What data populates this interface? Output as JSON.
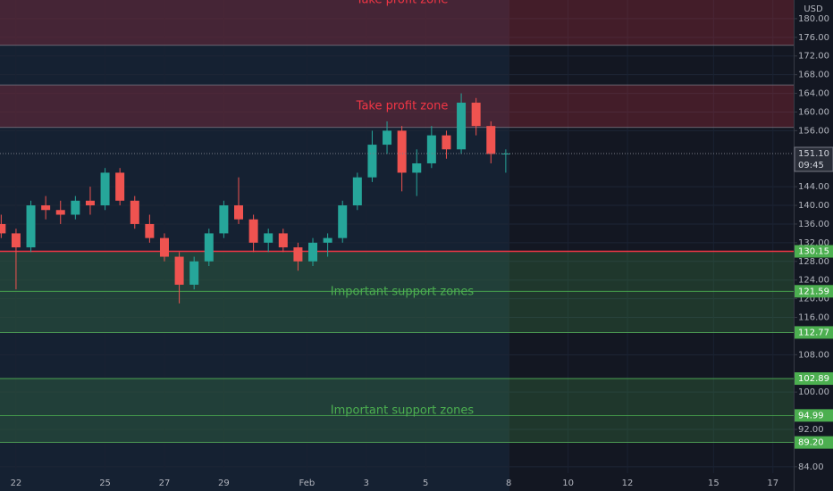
{
  "chart_data": {
    "type": "candlestick",
    "currency": "USD",
    "ylim": [
      78.8,
      184.0
    ],
    "xlim": [
      -0.54,
      26.2
    ],
    "yticks": [
      {
        "value": 180,
        "label": "180.00"
      },
      {
        "value": 176,
        "label": "176.00"
      },
      {
        "value": 172,
        "label": "172.00"
      },
      {
        "value": 168,
        "label": "168.00"
      },
      {
        "value": 164,
        "label": "164.00"
      },
      {
        "value": 160,
        "label": "160.00"
      },
      {
        "value": 156,
        "label": "156.00"
      },
      {
        "value": 144,
        "label": "144.00"
      },
      {
        "value": 140,
        "label": "140.00"
      },
      {
        "value": 136,
        "label": "136.00"
      },
      {
        "value": 132,
        "label": "132.00"
      },
      {
        "value": 128,
        "label": "128.00"
      },
      {
        "value": 124,
        "label": "124.00"
      },
      {
        "value": 120,
        "label": "120.00"
      },
      {
        "value": 116,
        "label": "116.00"
      },
      {
        "value": 108,
        "label": "108.00"
      },
      {
        "value": 100,
        "label": "100.00"
      },
      {
        "value": 92,
        "label": "92.00"
      },
      {
        "value": 84,
        "label": "84.00"
      }
    ],
    "xticks": [
      {
        "value": 0,
        "label": "22"
      },
      {
        "value": 3,
        "label": "25"
      },
      {
        "value": 5,
        "label": "27"
      },
      {
        "value": 7,
        "label": "29"
      },
      {
        "value": 9.8,
        "label": "Feb"
      },
      {
        "value": 11.8,
        "label": "3"
      },
      {
        "value": 13.8,
        "label": "5"
      },
      {
        "value": 16.6,
        "label": "8"
      },
      {
        "value": 18.6,
        "label": "10"
      },
      {
        "value": 20.6,
        "label": "12"
      },
      {
        "value": 23.5,
        "label": "15"
      },
      {
        "value": 25.5,
        "label": "17"
      }
    ],
    "up_color": "#26a69a",
    "down_color": "#ef5350",
    "candles": [
      {
        "x": -0.5,
        "open": 136,
        "high": 138,
        "low": 133,
        "close": 134
      },
      {
        "x": 0,
        "open": 134,
        "high": 135,
        "low": 122,
        "close": 131
      },
      {
        "x": 0.5,
        "open": 131,
        "high": 141,
        "low": 130,
        "close": 140
      },
      {
        "x": 1,
        "open": 140,
        "high": 142,
        "low": 137,
        "close": 139
      },
      {
        "x": 1.5,
        "open": 139,
        "high": 141,
        "low": 136,
        "close": 138
      },
      {
        "x": 2,
        "open": 138,
        "high": 142,
        "low": 137,
        "close": 141
      },
      {
        "x": 2.5,
        "open": 141,
        "high": 144,
        "low": 138,
        "close": 140
      },
      {
        "x": 3,
        "open": 140,
        "high": 148,
        "low": 139,
        "close": 147
      },
      {
        "x": 3.5,
        "open": 147,
        "high": 148,
        "low": 140,
        "close": 141
      },
      {
        "x": 4,
        "open": 141,
        "high": 142,
        "low": 135,
        "close": 136
      },
      {
        "x": 4.5,
        "open": 136,
        "high": 138,
        "low": 132,
        "close": 133
      },
      {
        "x": 5,
        "open": 133,
        "high": 134,
        "low": 128,
        "close": 129
      },
      {
        "x": 5.5,
        "open": 129,
        "high": 130,
        "low": 119,
        "close": 123
      },
      {
        "x": 6,
        "open": 123,
        "high": 129,
        "low": 122,
        "close": 128
      },
      {
        "x": 6.5,
        "open": 128,
        "high": 135,
        "low": 127,
        "close": 134
      },
      {
        "x": 7,
        "open": 134,
        "high": 141,
        "low": 133,
        "close": 140
      },
      {
        "x": 7.5,
        "open": 140,
        "high": 146,
        "low": 136,
        "close": 137
      },
      {
        "x": 8,
        "open": 137,
        "high": 138,
        "low": 130,
        "close": 132
      },
      {
        "x": 8.5,
        "open": 132,
        "high": 135,
        "low": 130,
        "close": 134
      },
      {
        "x": 9,
        "open": 134,
        "high": 135,
        "low": 130,
        "close": 131
      },
      {
        "x": 9.5,
        "open": 131,
        "high": 132,
        "low": 126,
        "close": 128
      },
      {
        "x": 10,
        "open": 128,
        "high": 133,
        "low": 127,
        "close": 132
      },
      {
        "x": 10.5,
        "open": 132,
        "high": 134,
        "low": 129,
        "close": 133
      },
      {
        "x": 11,
        "open": 133,
        "high": 141,
        "low": 132,
        "close": 140
      },
      {
        "x": 11.5,
        "open": 140,
        "high": 147,
        "low": 139,
        "close": 146
      },
      {
        "x": 12,
        "open": 146,
        "high": 156,
        "low": 145,
        "close": 153
      },
      {
        "x": 12.5,
        "open": 153,
        "high": 158,
        "low": 151,
        "close": 156
      },
      {
        "x": 13,
        "open": 156,
        "high": 157,
        "low": 143,
        "close": 147
      },
      {
        "x": 13.5,
        "open": 147,
        "high": 152,
        "low": 142,
        "close": 149
      },
      {
        "x": 14,
        "open": 149,
        "high": 157,
        "low": 148,
        "close": 155
      },
      {
        "x": 14.5,
        "open": 155,
        "high": 156,
        "low": 150,
        "close": 152
      },
      {
        "x": 15,
        "open": 152,
        "high": 164,
        "low": 151,
        "close": 162
      },
      {
        "x": 15.5,
        "open": 162,
        "high": 163,
        "low": 155,
        "close": 157
      },
      {
        "x": 16,
        "open": 157,
        "high": 158,
        "low": 149,
        "close": 151
      },
      {
        "x": 16.5,
        "open": 151,
        "high": 152,
        "low": 147,
        "close": 151.1
      }
    ],
    "zones": [
      {
        "name": "Take profit zone",
        "from": 174.3,
        "to": 193.7,
        "color": "rgba(242,54,69,0.22)",
        "text_color": "#f23645"
      },
      {
        "name": "Take profit zone",
        "from": 156.7,
        "to": 165.8,
        "color": "rgba(242,54,69,0.22)",
        "text_color": "#f23645"
      },
      {
        "name": "Important support zones",
        "from": 112.77,
        "to": 130.15,
        "color": "rgba(76,175,80,0.22)",
        "text_color": "#4caf50"
      },
      {
        "name": "Important support zones",
        "from": 89.2,
        "to": 102.89,
        "color": "rgba(76,175,80,0.22)",
        "text_color": "#4caf50"
      }
    ],
    "levels": [
      {
        "value": 130.15,
        "label": "130.15"
      },
      {
        "value": 121.59,
        "label": "121.59"
      },
      {
        "value": 112.77,
        "label": "112.77"
      },
      {
        "value": 102.89,
        "label": "102.89"
      },
      {
        "value": 94.99,
        "label": "94.99"
      },
      {
        "value": 89.2,
        "label": "89.20"
      }
    ],
    "level_color": "#4caf50",
    "last_price": {
      "value": 151.1,
      "label": "151.10"
    },
    "countdown": "09:45"
  }
}
